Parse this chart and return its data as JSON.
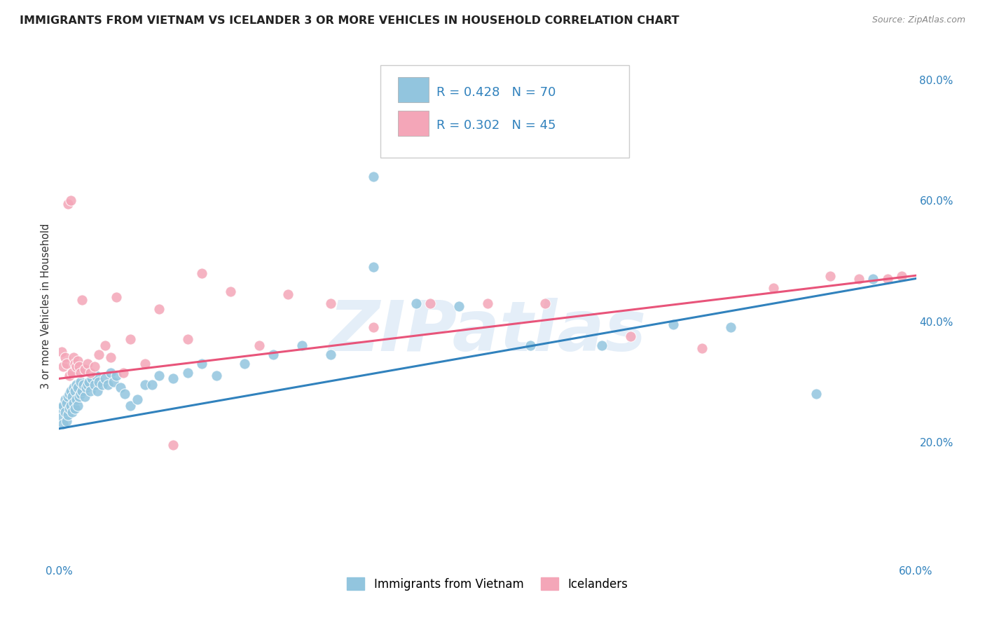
{
  "title": "IMMIGRANTS FROM VIETNAM VS ICELANDER 3 OR MORE VEHICLES IN HOUSEHOLD CORRELATION CHART",
  "source": "Source: ZipAtlas.com",
  "ylabel": "3 or more Vehicles in Household",
  "xlim": [
    0.0,
    0.6
  ],
  "ylim": [
    0.0,
    0.85
  ],
  "watermark_text": "ZIPatlas",
  "blue_color": "#92c5de",
  "pink_color": "#f4a6b8",
  "blue_line_color": "#3182bd",
  "pink_line_color": "#e8547a",
  "R_blue": 0.428,
  "N_blue": 70,
  "R_pink": 0.302,
  "N_pink": 45,
  "legend_label_blue": "Immigrants from Vietnam",
  "legend_label_pink": "Icelanders",
  "blue_intercept": 0.222,
  "blue_slope": 0.415,
  "pink_intercept": 0.305,
  "pink_slope": 0.285,
  "blue_x": [
    0.001,
    0.002,
    0.003,
    0.003,
    0.004,
    0.004,
    0.005,
    0.005,
    0.006,
    0.006,
    0.007,
    0.007,
    0.008,
    0.008,
    0.009,
    0.009,
    0.01,
    0.01,
    0.011,
    0.011,
    0.012,
    0.012,
    0.013,
    0.013,
    0.014,
    0.015,
    0.015,
    0.016,
    0.017,
    0.018,
    0.019,
    0.02,
    0.021,
    0.022,
    0.023,
    0.025,
    0.026,
    0.027,
    0.028,
    0.03,
    0.032,
    0.034,
    0.036,
    0.038,
    0.04,
    0.043,
    0.046,
    0.05,
    0.055,
    0.06,
    0.065,
    0.07,
    0.08,
    0.09,
    0.1,
    0.11,
    0.13,
    0.15,
    0.17,
    0.19,
    0.22,
    0.22,
    0.25,
    0.28,
    0.33,
    0.38,
    0.43,
    0.47,
    0.53,
    0.57
  ],
  "blue_y": [
    0.255,
    0.24,
    0.23,
    0.26,
    0.25,
    0.27,
    0.235,
    0.265,
    0.245,
    0.275,
    0.255,
    0.28,
    0.26,
    0.285,
    0.25,
    0.275,
    0.265,
    0.29,
    0.255,
    0.285,
    0.27,
    0.295,
    0.26,
    0.29,
    0.275,
    0.28,
    0.3,
    0.285,
    0.295,
    0.275,
    0.29,
    0.295,
    0.3,
    0.285,
    0.305,
    0.295,
    0.31,
    0.285,
    0.3,
    0.295,
    0.305,
    0.295,
    0.315,
    0.3,
    0.31,
    0.29,
    0.28,
    0.26,
    0.27,
    0.295,
    0.295,
    0.31,
    0.305,
    0.315,
    0.33,
    0.31,
    0.33,
    0.345,
    0.36,
    0.345,
    0.49,
    0.64,
    0.43,
    0.425,
    0.36,
    0.36,
    0.395,
    0.39,
    0.28,
    0.47
  ],
  "pink_x": [
    0.002,
    0.003,
    0.004,
    0.005,
    0.006,
    0.007,
    0.008,
    0.009,
    0.01,
    0.011,
    0.012,
    0.013,
    0.014,
    0.015,
    0.016,
    0.018,
    0.02,
    0.022,
    0.025,
    0.028,
    0.032,
    0.036,
    0.04,
    0.045,
    0.05,
    0.06,
    0.07,
    0.08,
    0.09,
    0.1,
    0.12,
    0.14,
    0.16,
    0.19,
    0.22,
    0.26,
    0.3,
    0.34,
    0.4,
    0.45,
    0.5,
    0.54,
    0.56,
    0.58,
    0.59
  ],
  "pink_y": [
    0.35,
    0.325,
    0.34,
    0.33,
    0.595,
    0.31,
    0.6,
    0.315,
    0.34,
    0.33,
    0.325,
    0.335,
    0.325,
    0.315,
    0.435,
    0.32,
    0.33,
    0.315,
    0.325,
    0.345,
    0.36,
    0.34,
    0.44,
    0.315,
    0.37,
    0.33,
    0.42,
    0.195,
    0.37,
    0.48,
    0.45,
    0.36,
    0.445,
    0.43,
    0.39,
    0.43,
    0.43,
    0.43,
    0.375,
    0.355,
    0.455,
    0.475,
    0.47,
    0.47,
    0.475
  ],
  "title_fontsize": 11.5,
  "axis_label_fontsize": 10.5,
  "tick_fontsize": 11,
  "legend_fontsize": 13,
  "background_color": "#ffffff",
  "grid_color": "#d0d0d0"
}
